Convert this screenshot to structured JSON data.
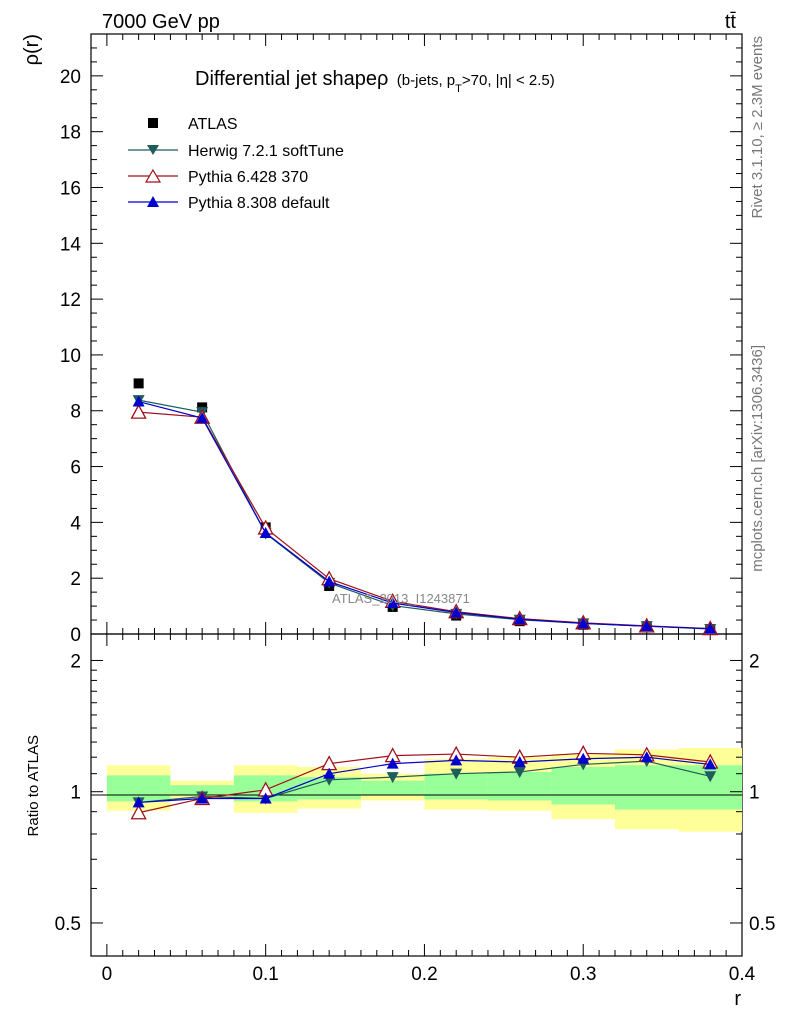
{
  "header": {
    "left": "7000 GeV pp",
    "right": "tt̄"
  },
  "side_text": {
    "rivet": "Rivet 3.1.10, ≥ 2.3M events",
    "mcplots": "mcplots.cern.ch [arXiv:1306.3436]"
  },
  "watermark": "ATLAS_2013_I1243871",
  "colors": {
    "atlas": "#000000",
    "herwig": "#1f5c5c",
    "pythia6": "#a0101a",
    "pythia8": "#0000cc",
    "band_outer": "#ffff99",
    "band_inner": "#99ff99"
  },
  "chart_data": [
    {
      "type": "line",
      "title": "Differential jet shapeρ (b-jets, pT>70, |η| < 2.5)",
      "title_parts": {
        "main": "Differential jet shapeρ",
        "sub_open": "(b-jets, p",
        "sub_T": "T",
        "sub_close": ">70, |η| < 2.5)"
      },
      "ylabel": "ρ(r)",
      "xlabel": "r",
      "xlim": [
        -0.01,
        0.4
      ],
      "ylim": [
        0,
        21.5
      ],
      "yticks": [
        0,
        2,
        4,
        6,
        8,
        10,
        12,
        14,
        16,
        18,
        20
      ],
      "ytick_labels": [
        "0",
        "2",
        "4",
        "6",
        "8",
        "10",
        "12",
        "14",
        "16",
        "18",
        "20"
      ],
      "legend_position": "top-left",
      "x": [
        0.02,
        0.06,
        0.1,
        0.14,
        0.18,
        0.22,
        0.26,
        0.3,
        0.34,
        0.38
      ],
      "series": [
        {
          "name": "ATLAS",
          "marker": "square",
          "color": "#000000",
          "values": [
            8.98,
            8.12,
            3.82,
            1.72,
            0.97,
            0.66,
            0.46,
            0.33,
            0.24,
            0.17
          ]
        },
        {
          "name": "Herwig 7.2.1 softTune",
          "marker": "triangle-down",
          "color": "#1f5c5c",
          "values": [
            8.38,
            7.95,
            3.6,
            1.83,
            1.02,
            0.72,
            0.51,
            0.38,
            0.28,
            0.18
          ]
        },
        {
          "name": "Pythia 6.428 370",
          "marker": "triangle-up-open",
          "color": "#a0101a",
          "values": [
            7.95,
            7.77,
            3.8,
            1.98,
            1.17,
            0.8,
            0.55,
            0.4,
            0.29,
            0.195
          ]
        },
        {
          "name": "Pythia 8.308 default",
          "marker": "triangle-up",
          "color": "#0000cc",
          "values": [
            8.33,
            7.74,
            3.62,
            1.88,
            1.11,
            0.77,
            0.53,
            0.38,
            0.28,
            0.19
          ]
        }
      ]
    },
    {
      "type": "line",
      "title": "",
      "ylabel": "Ratio to ATLAS",
      "xlabel": "r",
      "xlim": [
        -0.01,
        0.4
      ],
      "ylim": [
        0.42,
        2.3
      ],
      "log_y": true,
      "yticks": [
        0.5,
        1,
        2
      ],
      "ytick_labels": [
        "0.5",
        "1",
        "2"
      ],
      "xticks": [
        0,
        0.1,
        0.2,
        0.3,
        0.4
      ],
      "xtick_labels": [
        "0",
        "0.1",
        "0.2",
        "0.3",
        "0.4"
      ],
      "x": [
        0.02,
        0.06,
        0.1,
        0.14,
        0.18,
        0.22,
        0.26,
        0.3,
        0.34,
        0.38
      ],
      "bands": {
        "bin_edges": [
          0.0,
          0.04,
          0.08,
          0.12,
          0.16,
          0.2,
          0.24,
          0.28,
          0.32,
          0.36,
          0.4
        ],
        "outer_low": [
          0.905,
          0.965,
          0.895,
          0.915,
          0.955,
          0.91,
          0.905,
          0.865,
          0.82,
          0.81
        ],
        "outer_high": [
          1.15,
          1.06,
          1.15,
          1.14,
          1.1,
          1.19,
          1.2,
          1.22,
          1.25,
          1.26
        ],
        "inner_low": [
          0.95,
          0.98,
          0.95,
          0.96,
          0.98,
          0.96,
          0.955,
          0.935,
          0.91,
          0.91
        ],
        "inner_high": [
          1.09,
          1.035,
          1.09,
          1.08,
          1.06,
          1.1,
          1.11,
          1.14,
          1.15,
          1.15
        ]
      },
      "series": [
        {
          "name": "Herwig 7.2.1 softTune",
          "marker": "triangle-down",
          "color": "#1f5c5c",
          "values": [
            0.945,
            0.975,
            0.965,
            1.065,
            1.08,
            1.1,
            1.11,
            1.155,
            1.175,
            1.085
          ]
        },
        {
          "name": "Pythia 6.428 370",
          "marker": "triangle-up-open",
          "color": "#a0101a",
          "values": [
            0.895,
            0.965,
            1.01,
            1.16,
            1.21,
            1.22,
            1.2,
            1.225,
            1.215,
            1.17
          ]
        },
        {
          "name": "Pythia 8.308 default",
          "marker": "triangle-up",
          "color": "#0000cc",
          "values": [
            0.945,
            0.965,
            0.965,
            1.1,
            1.16,
            1.18,
            1.17,
            1.19,
            1.2,
            1.155
          ]
        }
      ]
    }
  ]
}
